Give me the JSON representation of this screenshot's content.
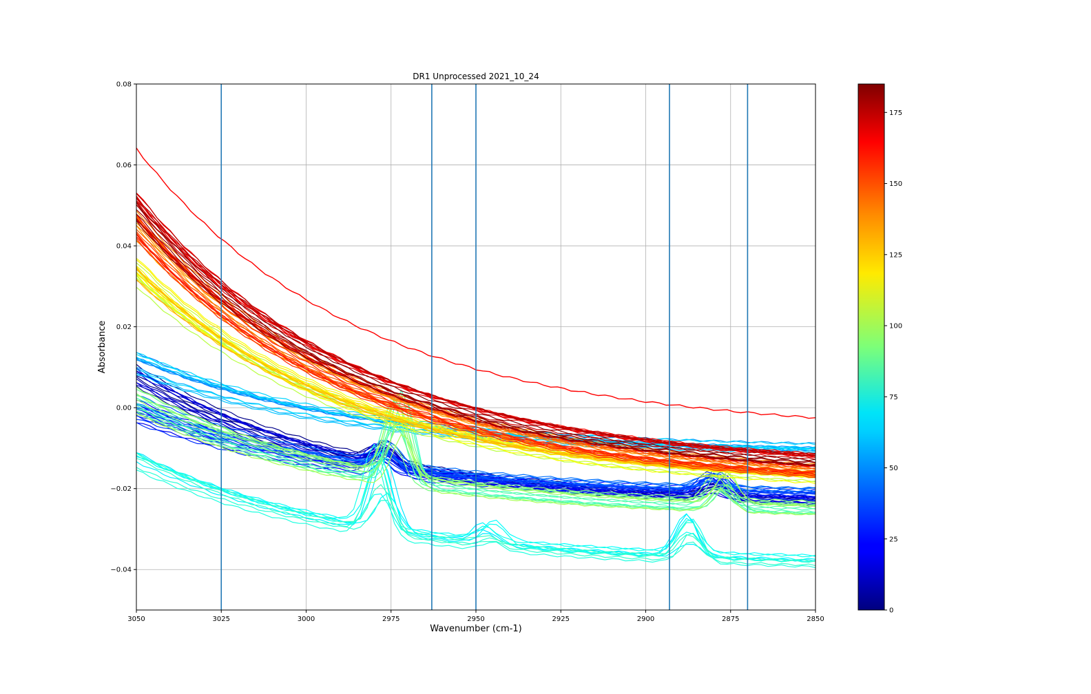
{
  "chart_data": {
    "type": "line",
    "title": "DR1 Unprocessed 2021_10_24",
    "xlabel": "Wavenumber (cm-1)",
    "ylabel": "Absorbance",
    "xlim": [
      3050,
      2850
    ],
    "ylim": [
      -0.05,
      0.08
    ],
    "x_ticks": [
      "3050",
      "3025",
      "3000",
      "2975",
      "2950",
      "2925",
      "2900",
      "2875",
      "2850"
    ],
    "x_tick_values": [
      3050,
      3025,
      3000,
      2975,
      2950,
      2925,
      2900,
      2875,
      2850
    ],
    "y_ticks": [
      "−0.04",
      "−0.02",
      "0.00",
      "0.02",
      "0.04",
      "0.06",
      "0.08"
    ],
    "y_tick_values": [
      -0.04,
      -0.02,
      0.0,
      0.02,
      0.04,
      0.06,
      0.08
    ],
    "grid": true,
    "x_inverted": true,
    "vertical_lines": [
      3025,
      2963,
      2950,
      2893,
      2870
    ],
    "vertical_line_color": "#1f77b4",
    "colormap": "jet",
    "colorbar": {
      "range": [
        0,
        185
      ],
      "ticks": [
        "0",
        "25",
        "50",
        "75",
        "100",
        "125",
        "150",
        "175"
      ],
      "tick_values": [
        0,
        25,
        50,
        75,
        100,
        125,
        150,
        175
      ]
    },
    "spectra_families": [
      {
        "index_range": [
          0,
          20
        ],
        "start_absorbance": 0.008,
        "end_absorbance": -0.023,
        "peaks": [
          {
            "center": 2977,
            "height": 0.004
          },
          {
            "center": 2880,
            "height": 0.003
          }
        ]
      },
      {
        "index_range": [
          20,
          45
        ],
        "start_absorbance": 0.0,
        "end_absorbance": -0.021,
        "peaks": [
          {
            "center": 2977,
            "height": 0.005
          },
          {
            "center": 2880,
            "height": 0.004
          }
        ]
      },
      {
        "index_range": [
          45,
          65
        ],
        "start_absorbance": 0.012,
        "end_absorbance": -0.01,
        "peaks": []
      },
      {
        "index_range": [
          65,
          80
        ],
        "start_absorbance": -0.014,
        "end_absorbance": -0.038,
        "peaks": [
          {
            "center": 2978,
            "height": 0.018
          },
          {
            "center": 2946,
            "height": 0.004
          },
          {
            "center": 2888,
            "height": 0.008
          }
        ]
      },
      {
        "index_range": [
          80,
          100
        ],
        "start_absorbance": 0.002,
        "end_absorbance": -0.025,
        "peaks": [
          {
            "center": 2973,
            "height": 0.018
          },
          {
            "center": 2878,
            "height": 0.006
          }
        ]
      },
      {
        "index_range": [
          100,
          130
        ],
        "start_absorbance": 0.034,
        "end_absorbance": -0.017,
        "peaks": []
      },
      {
        "index_range": [
          130,
          160
        ],
        "start_absorbance": 0.044,
        "end_absorbance": -0.016,
        "peaks": []
      },
      {
        "index_range": [
          160,
          185
        ],
        "start_absorbance": 0.05,
        "end_absorbance": -0.013,
        "peaks": []
      }
    ],
    "highlight_spectrum": {
      "index": 162,
      "start_absorbance": 0.064,
      "end_absorbance": -0.0025
    }
  }
}
